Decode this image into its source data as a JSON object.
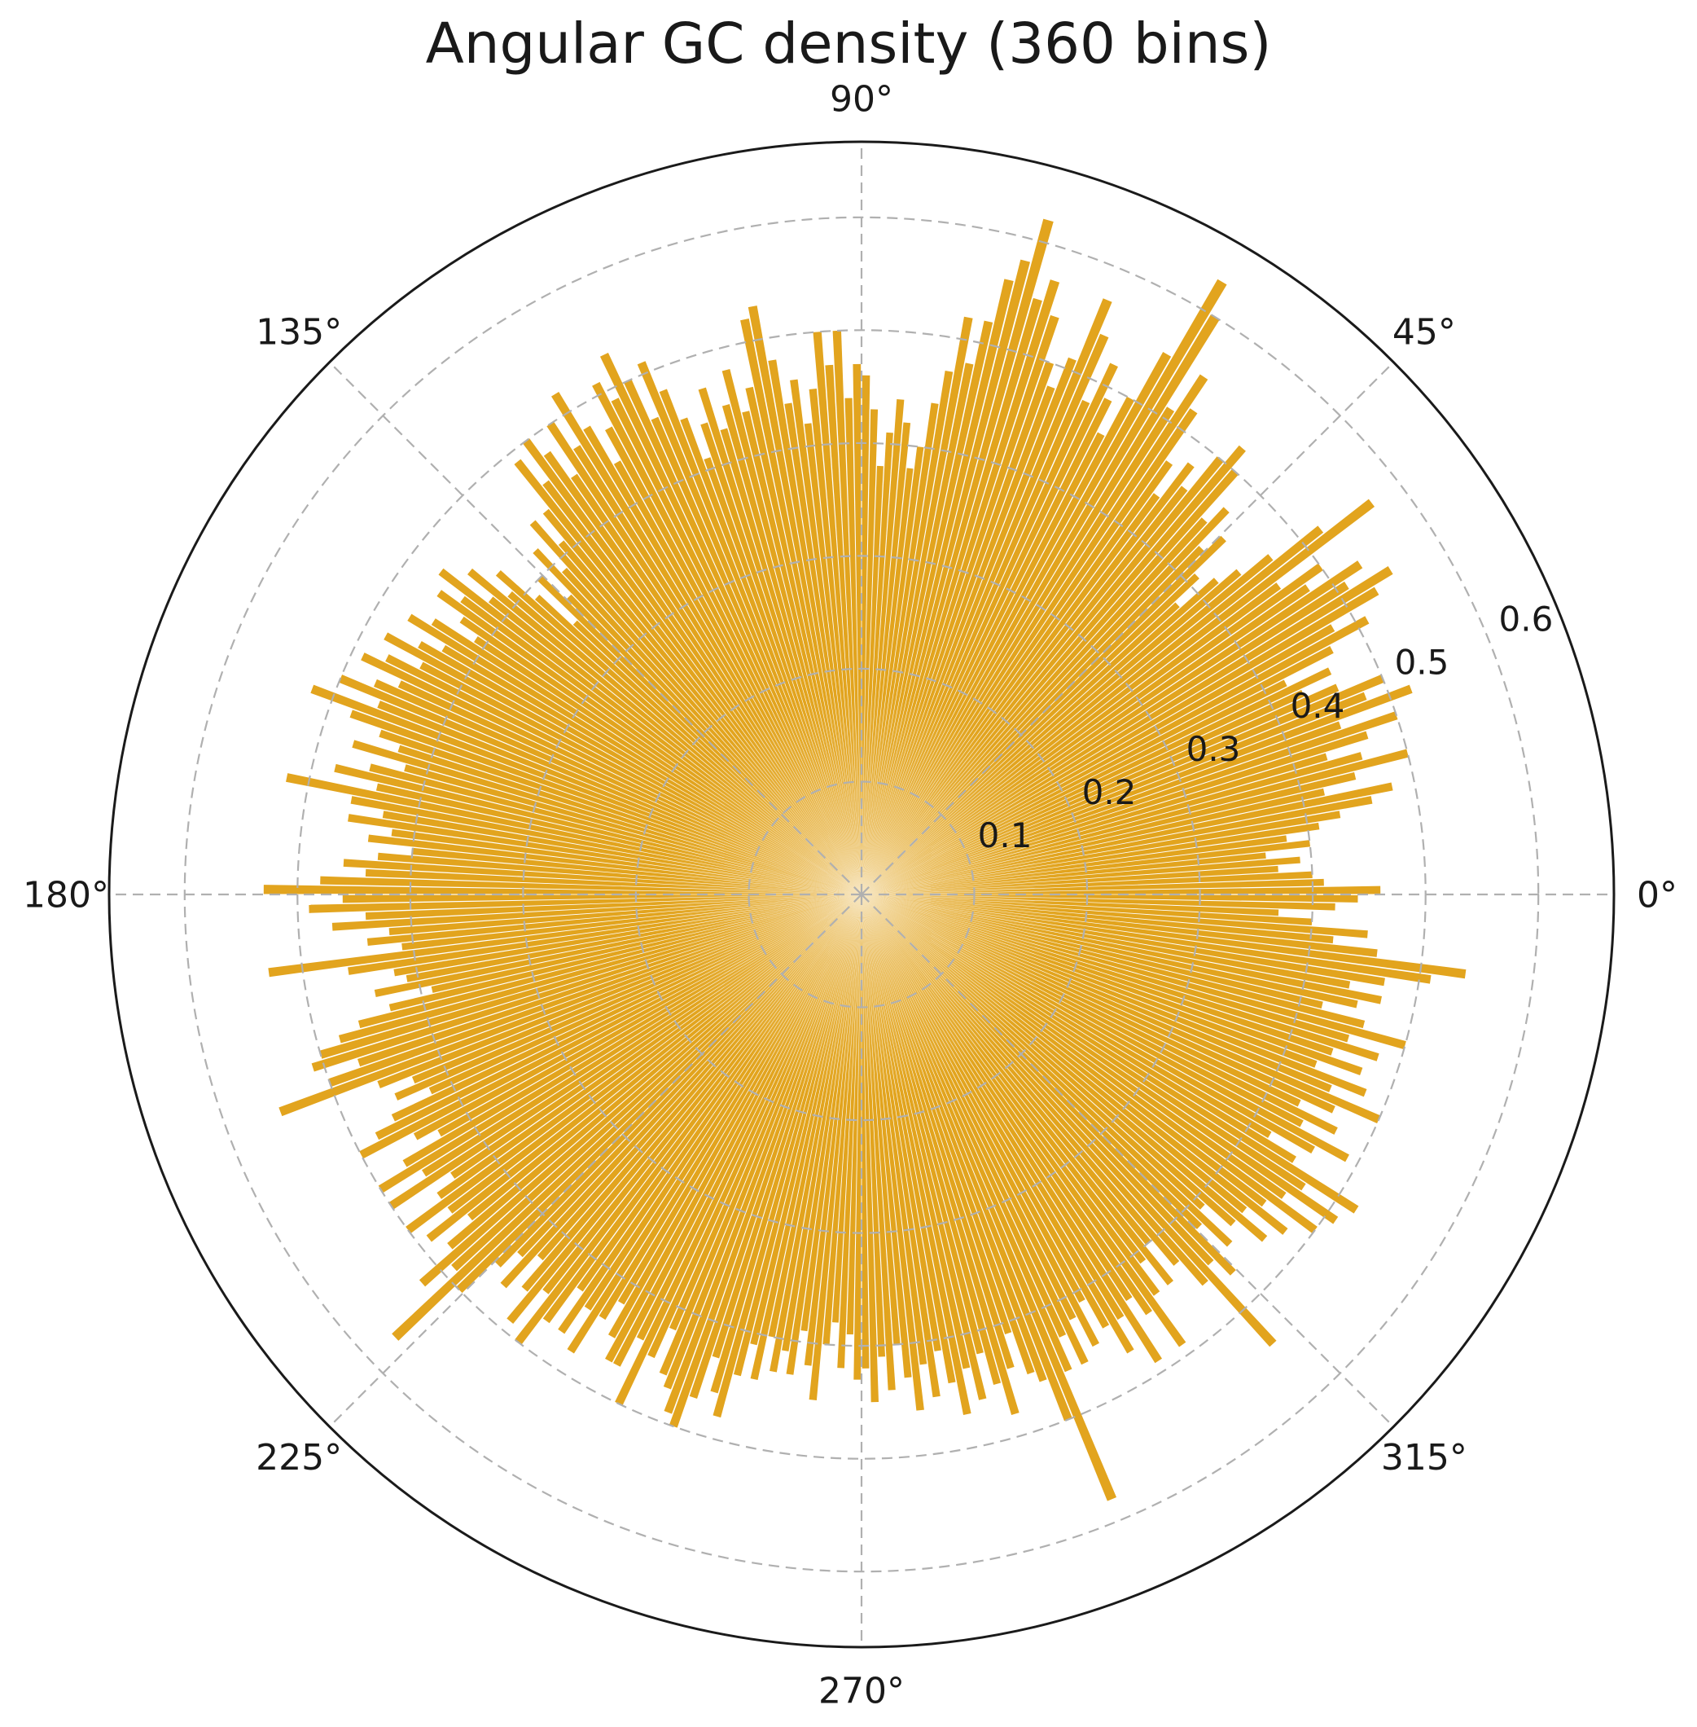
{
  "title": "Angular GC density (360 bins)",
  "chart_data": {
    "type": "bar",
    "coordinate_system": "polar",
    "title": "Angular GC density (360 bins)",
    "bins": 360,
    "theta_start_deg": 0,
    "theta_step_deg": 1,
    "r_axis_max": 0.667,
    "grid": true,
    "legend": null,
    "angular_tick_degrees": [
      0,
      45,
      90,
      135,
      180,
      225,
      270,
      315
    ],
    "angular_tick_labels": [
      "0°",
      "45°",
      "90°",
      "135°",
      "180°",
      "225°",
      "270°",
      "315°"
    ],
    "radial_tick_values": [
      0.1,
      0.2,
      0.3,
      0.4,
      0.5,
      0.6
    ],
    "radial_tick_labels": [
      "0.1",
      "0.2",
      "0.3",
      "0.4",
      "0.5",
      "0.6"
    ],
    "radial_tick_label_angle_deg": 22.5,
    "bar_color": "#E2A41E",
    "grid_color": "#b0b0b0",
    "outline_color": "#1a1a1a",
    "text_color": "#191919",
    "values": [
      0.46,
      0.41,
      0.4,
      0.37,
      0.39,
      0.36,
      0.4,
      0.38,
      0.41,
      0.43,
      0.46,
      0.48,
      0.42,
      0.45,
      0.5,
      0.46,
      0.43,
      0.47,
      0.5,
      0.45,
      0.52,
      0.48,
      0.5,
      0.46,
      0.43,
      0.46,
      0.42,
      0.47,
      0.51,
      0.48,
      0.53,
      0.55,
      0.51,
      0.53,
      0.48,
      0.5,
      0.46,
      0.57,
      0.52,
      0.47,
      0.44,
      0.42,
      0.38,
      0.41,
      0.45,
      0.43,
      0.47,
      0.45,
      0.5,
      0.52,
      0.5,
      0.46,
      0.48,
      0.44,
      0.47,
      0.52,
      0.55,
      0.51,
      0.6,
      0.63,
      0.55,
      0.5,
      0.46,
      0.49,
      0.52,
      0.48,
      0.54,
      0.57,
      0.51,
      0.48,
      0.5,
      0.54,
      0.57,
      0.55,
      0.62,
      0.58,
      0.56,
      0.52,
      0.48,
      0.52,
      0.47,
      0.44,
      0.4,
      0.38,
      0.42,
      0.44,
      0.41,
      0.38,
      0.43,
      0.46,
      0.47,
      0.44,
      0.5,
      0.47,
      0.5,
      0.45,
      0.42,
      0.46,
      0.44,
      0.48,
      0.53,
      0.52,
      0.46,
      0.44,
      0.48,
      0.45,
      0.43,
      0.47,
      0.44,
      0.41,
      0.45,
      0.48,
      0.51,
      0.46,
      0.5,
      0.53,
      0.49,
      0.51,
      0.47,
      0.44,
      0.48,
      0.52,
      0.47,
      0.5,
      0.45,
      0.48,
      0.5,
      0.46,
      0.49,
      0.44,
      0.41,
      0.44,
      0.39,
      0.42,
      0.37,
      0.4,
      0.35,
      0.39,
      0.43,
      0.41,
      0.45,
      0.42,
      0.47,
      0.44,
      0.46,
      0.43,
      0.41,
      0.45,
      0.47,
      0.43,
      0.45,
      0.48,
      0.44,
      0.47,
      0.49,
      0.45,
      0.47,
      0.5,
      0.46,
      0.52,
      0.48,
      0.45,
      0.43,
      0.47,
      0.42,
      0.45,
      0.48,
      0.44,
      0.52,
      0.46,
      0.43,
      0.46,
      0.42,
      0.44,
      0.4,
      0.43,
      0.46,
      0.44,
      0.48,
      0.53,
      0.46,
      0.49,
      0.44,
      0.47,
      0.42,
      0.44,
      0.41,
      0.53,
      0.46,
      0.42,
      0.41,
      0.44,
      0.39,
      0.43,
      0.46,
      0.48,
      0.5,
      0.51,
      0.47,
      0.5,
      0.55,
      0.46,
      0.43,
      0.45,
      0.42,
      0.46,
      0.48,
      0.5,
      0.45,
      0.43,
      0.47,
      0.5,
      0.46,
      0.5,
      0.44,
      0.46,
      0.5,
      0.46,
      0.49,
      0.45,
      0.48,
      0.52,
      0.49,
      0.57,
      0.5,
      0.46,
      0.44,
      0.47,
      0.43,
      0.46,
      0.49,
      0.45,
      0.5,
      0.47,
      0.43,
      0.47,
      0.44,
      0.48,
      0.44,
      0.42,
      0.45,
      0.47,
      0.47,
      0.44,
      0.5,
      0.45,
      0.42,
      0.46,
      0.47,
      0.49,
      0.5,
      0.47,
      0.43,
      0.46,
      0.48,
      0.44,
      0.41,
      0.44,
      0.4,
      0.43,
      0.41,
      0.43,
      0.39,
      0.42,
      0.45,
      0.4,
      0.38,
      0.42,
      0.39,
      0.43,
      0.42,
      0.45,
      0.41,
      0.44,
      0.4,
      0.43,
      0.46,
      0.42,
      0.45,
      0.41,
      0.44,
      0.47,
      0.43,
      0.46,
      0.42,
      0.45,
      0.48,
      0.44,
      0.41,
      0.45,
      0.46,
      0.5,
      0.58,
      0.46,
      0.43,
      0.46,
      0.42,
      0.45,
      0.41,
      0.44,
      0.47,
      0.44,
      0.49,
      0.43,
      0.45,
      0.49,
      0.44,
      0.41,
      0.44,
      0.4,
      0.43,
      0.46,
      0.54,
      0.45,
      0.47,
      0.42,
      0.45,
      0.41,
      0.44,
      0.47,
      0.44,
      0.48,
      0.45,
      0.5,
      0.46,
      0.51,
      0.47,
      0.52,
      0.45,
      0.42,
      0.46,
      0.49,
      0.44,
      0.47,
      0.43,
      0.46,
      0.5,
      0.45,
      0.48,
      0.43,
      0.47,
      0.44,
      0.48,
      0.45,
      0.5,
      0.46,
      0.42,
      0.45,
      0.47,
      0.44,
      0.47,
      0.51,
      0.54,
      0.46,
      0.42,
      0.45,
      0.4,
      0.37,
      0.42,
      0.44
    ]
  }
}
